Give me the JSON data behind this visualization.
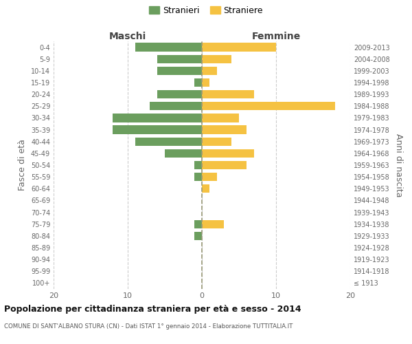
{
  "age_groups": [
    "100+",
    "95-99",
    "90-94",
    "85-89",
    "80-84",
    "75-79",
    "70-74",
    "65-69",
    "60-64",
    "55-59",
    "50-54",
    "45-49",
    "40-44",
    "35-39",
    "30-34",
    "25-29",
    "20-24",
    "15-19",
    "10-14",
    "5-9",
    "0-4"
  ],
  "birth_years": [
    "≤ 1913",
    "1914-1918",
    "1919-1923",
    "1924-1928",
    "1929-1933",
    "1934-1938",
    "1939-1943",
    "1944-1948",
    "1949-1953",
    "1954-1958",
    "1959-1963",
    "1964-1968",
    "1969-1973",
    "1974-1978",
    "1979-1983",
    "1984-1988",
    "1989-1993",
    "1994-1998",
    "1999-2003",
    "2004-2008",
    "2009-2013"
  ],
  "males": [
    0,
    0,
    0,
    0,
    1,
    1,
    0,
    0,
    0,
    1,
    1,
    5,
    9,
    12,
    12,
    7,
    6,
    1,
    6,
    6,
    9
  ],
  "females": [
    0,
    0,
    0,
    0,
    0,
    3,
    0,
    0,
    1,
    2,
    6,
    7,
    4,
    6,
    5,
    18,
    7,
    1,
    2,
    4,
    10
  ],
  "male_color": "#6b9e5e",
  "female_color": "#f5c242",
  "title": "Popolazione per cittadinanza straniera per età e sesso - 2014",
  "subtitle": "COMUNE DI SANT'ALBANO STURA (CN) - Dati ISTAT 1° gennaio 2014 - Elaborazione TUTTITALIA.IT",
  "xlabel_left": "Maschi",
  "xlabel_right": "Femmine",
  "ylabel_left": "Fasce di età",
  "ylabel_right": "Anni di nascita",
  "legend_male": "Stranieri",
  "legend_female": "Straniere",
  "xlim": 20,
  "background_color": "#ffffff",
  "grid_color": "#cccccc"
}
